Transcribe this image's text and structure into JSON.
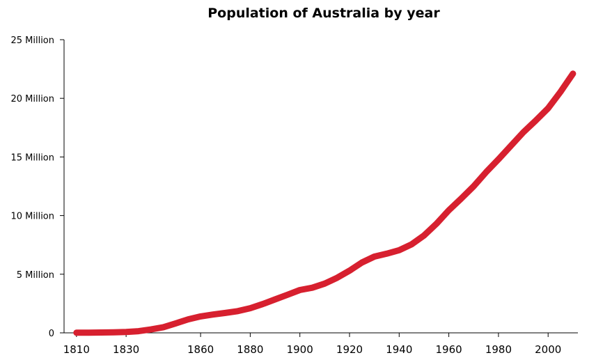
{
  "chart_data": {
    "type": "line",
    "title": "Population of Australia by year",
    "xlabel": "",
    "ylabel": "",
    "xlim": [
      1805,
      2012
    ],
    "ylim": [
      0,
      25000000
    ],
    "grid": false,
    "legend": "none",
    "x_ticks": [
      1810,
      1830,
      1860,
      1880,
      1900,
      1920,
      1940,
      1960,
      1980,
      2000
    ],
    "y_ticks": [
      {
        "value": 0,
        "label": "0"
      },
      {
        "value": 5000000,
        "label": "5 Million"
      },
      {
        "value": 10000000,
        "label": "10 Million"
      },
      {
        "value": 15000000,
        "label": "15 Million"
      },
      {
        "value": 20000000,
        "label": "20 Million"
      },
      {
        "value": 25000000,
        "label": "25 Million"
      }
    ],
    "series": [
      {
        "color": "#d7202f",
        "x": [
          1810,
          1815,
          1820,
          1825,
          1830,
          1835,
          1840,
          1845,
          1850,
          1855,
          1860,
          1865,
          1870,
          1875,
          1880,
          1885,
          1890,
          1895,
          1900,
          1905,
          1910,
          1915,
          1920,
          1925,
          1930,
          1935,
          1940,
          1945,
          1950,
          1955,
          1960,
          1965,
          1970,
          1975,
          1980,
          1985,
          1990,
          1995,
          2000,
          2005,
          2010
        ],
        "y": [
          10000,
          15000,
          30000,
          50000,
          70000,
          140000,
          290000,
          480000,
          810000,
          1150000,
          1400000,
          1560000,
          1700000,
          1850000,
          2100000,
          2450000,
          2850000,
          3250000,
          3650000,
          3850000,
          4200000,
          4700000,
          5300000,
          6000000,
          6500000,
          6750000,
          7050000,
          7550000,
          8300000,
          9300000,
          10450000,
          11450000,
          12500000,
          13700000,
          14800000,
          15950000,
          17100000,
          18100000,
          19150000,
          20550000,
          22100000
        ]
      }
    ]
  }
}
